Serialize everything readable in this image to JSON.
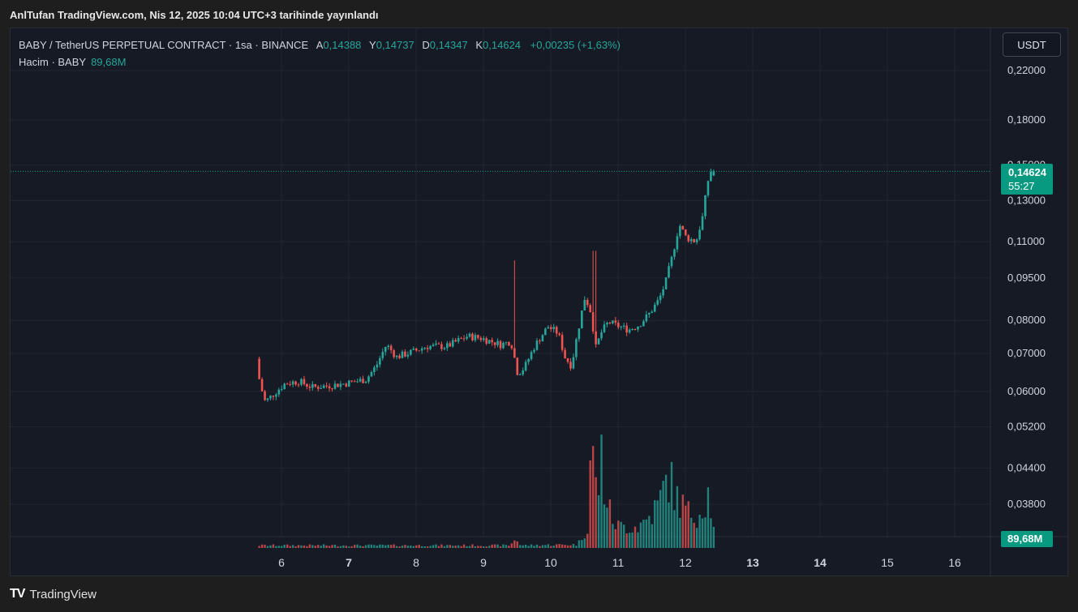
{
  "header": {
    "published_text": "AnlTufan TradingView.com, Nis 12, 2025 10:04 UTC+3 tarihinde yayınlandı"
  },
  "legend": {
    "symbol": "BABY / TetherUS PERPETUAL CONTRACT · 1sa · BINANCE",
    "open_label": "A",
    "open": "0,14388",
    "high_label": "Y",
    "high": "0,14737",
    "low_label": "D",
    "low": "0,14347",
    "close_label": "K",
    "close": "0,14624",
    "change": "+0,00235 (+1,63%)",
    "volume_label": "Hacim · BABY",
    "volume": "89,68M"
  },
  "currency_button": "USDT",
  "price_tag": {
    "price": "0,14624",
    "countdown": "55:27"
  },
  "volume_tag": "89,68M",
  "footer": {
    "logo": "TV",
    "brand": "TradingView"
  },
  "colors": {
    "up": "#26a69a",
    "down": "#ef5350",
    "background": "#161a25",
    "grid": "#232632",
    "tag": "#089981"
  },
  "chart_data": {
    "type": "candlestick",
    "interval": "1h",
    "scale": "log",
    "y_ticks": [
      "0,22000",
      "0,18000",
      "0,15000",
      "0,13000",
      "0,11000",
      "0,09500",
      "0,08000",
      "0,07000",
      "0,06000",
      "0,05200",
      "0,04400",
      "0,03800"
    ],
    "y_tick_values": [
      0.22,
      0.18,
      0.15,
      0.13,
      0.11,
      0.095,
      0.08,
      0.07,
      0.06,
      0.052,
      0.044,
      0.038
    ],
    "x_ticks": [
      "6",
      "7",
      "8",
      "9",
      "10",
      "11",
      "12",
      "13",
      "14",
      "15",
      "16"
    ],
    "x_tick_days": [
      6,
      7,
      8,
      9,
      10,
      11,
      12,
      13,
      14,
      15,
      16
    ],
    "last_price": 0.14624,
    "price_path_days": [
      5.67,
      5.72,
      5.8,
      5.9,
      6.1,
      6.3,
      6.5,
      6.8,
      7.0,
      7.3,
      7.45,
      7.6,
      7.75,
      8.0,
      8.2,
      8.5,
      8.8,
      9.0,
      9.15,
      9.3,
      9.45,
      9.55,
      9.65,
      9.8,
      10.0,
      10.15,
      10.25,
      10.35,
      10.45,
      10.55,
      10.65,
      10.7,
      10.8,
      10.9,
      11.0,
      11.2,
      11.35,
      11.5,
      11.65,
      11.75,
      11.85,
      11.95,
      12.05,
      12.2,
      12.3,
      12.4
    ],
    "price_path_values": [
      0.0685,
      0.062,
      0.0575,
      0.059,
      0.062,
      0.0625,
      0.061,
      0.0615,
      0.062,
      0.063,
      0.0665,
      0.0725,
      0.069,
      0.0705,
      0.072,
      0.072,
      0.075,
      0.0745,
      0.0735,
      0.0725,
      0.0735,
      0.0645,
      0.066,
      0.072,
      0.078,
      0.076,
      0.069,
      0.0665,
      0.077,
      0.088,
      0.082,
      0.071,
      0.0765,
      0.0795,
      0.0785,
      0.077,
      0.0785,
      0.082,
      0.087,
      0.0935,
      0.104,
      0.118,
      0.112,
      0.11,
      0.122,
      0.14624
    ],
    "candle_range_days": [
      5.67,
      12.42
    ],
    "volume_path_days": [
      5.67,
      9.4,
      9.48,
      9.55,
      10.4,
      10.55,
      10.6,
      10.65,
      10.7,
      10.75,
      10.8,
      10.9,
      11.0,
      11.3,
      11.45,
      11.6,
      11.75,
      11.85,
      11.95,
      12.05,
      12.2,
      12.35,
      12.42
    ],
    "volume_path_values": [
      0.3,
      0.3,
      1.2,
      0.3,
      0.4,
      2.5,
      13.0,
      8.0,
      6.0,
      11.0,
      6.5,
      3.5,
      2.5,
      2.5,
      3.5,
      5.0,
      8.5,
      6.0,
      5.0,
      4.0,
      4.0,
      6.5,
      2.0
    ]
  }
}
